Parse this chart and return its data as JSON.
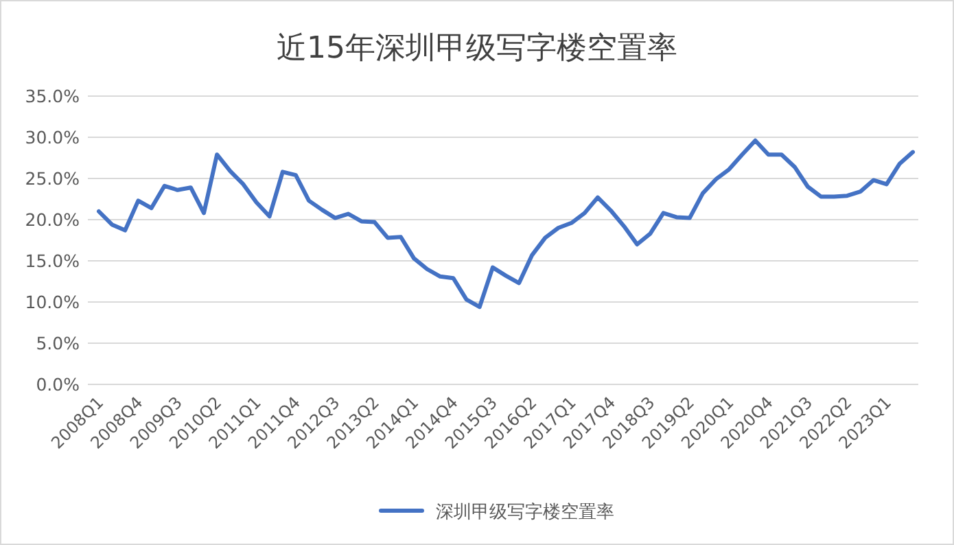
{
  "chart_data": {
    "type": "line",
    "title": "近15年深圳甲级写字楼空置率",
    "categories": [
      "2008Q1",
      null,
      null,
      "2008Q4",
      null,
      null,
      "2009Q3",
      null,
      null,
      "2010Q2",
      null,
      null,
      "2011Q1",
      null,
      null,
      "2011Q4",
      null,
      null,
      "2012Q3",
      null,
      null,
      "2013Q2",
      null,
      null,
      "2014Q1",
      null,
      null,
      "2014Q4",
      null,
      null,
      "2015Q3",
      null,
      null,
      "2016Q2",
      null,
      null,
      "2017Q1",
      null,
      null,
      "2017Q4",
      null,
      null,
      "2018Q3",
      null,
      null,
      "2019Q2",
      null,
      null,
      "2020Q1",
      null,
      null,
      "2020Q4",
      null,
      null,
      "2021Q3",
      null,
      null,
      "2022Q2",
      null,
      null,
      "2023Q1",
      null,
      null
    ],
    "series": [
      {
        "name": "深圳甲级写字楼空置率",
        "color": "#4472c4",
        "values": [
          21.0,
          19.4,
          18.7,
          22.3,
          21.4,
          24.1,
          23.6,
          23.9,
          20.8,
          27.9,
          25.9,
          24.3,
          22.1,
          20.4,
          25.8,
          25.4,
          22.3,
          21.2,
          20.2,
          20.7,
          19.8,
          19.7,
          17.8,
          17.9,
          15.3,
          14.0,
          13.1,
          12.9,
          10.3,
          9.4,
          14.2,
          13.2,
          12.3,
          15.7,
          17.8,
          19.0,
          19.6,
          20.8,
          22.7,
          21.1,
          19.2,
          17.0,
          18.3,
          20.8,
          20.3,
          20.2,
          23.2,
          24.9,
          26.1,
          27.9,
          29.6,
          27.9,
          27.9,
          26.4,
          24.0,
          22.8,
          22.8,
          22.9,
          23.4,
          24.8,
          24.3,
          26.8,
          28.2
        ]
      }
    ],
    "ylim": [
      0,
      35
    ],
    "yticks": [
      {
        "value": 0,
        "label": "0.0%"
      },
      {
        "value": 5,
        "label": "5.0%"
      },
      {
        "value": 10,
        "label": "10.0%"
      },
      {
        "value": 15,
        "label": "15.0%"
      },
      {
        "value": 20,
        "label": "20.0%"
      },
      {
        "value": 25,
        "label": "25.0%"
      },
      {
        "value": 30,
        "label": "30.0%"
      },
      {
        "value": 35,
        "label": "35.0%"
      }
    ],
    "grid": "y",
    "legend": "bottom",
    "marker": "none",
    "line_style": "solid"
  }
}
